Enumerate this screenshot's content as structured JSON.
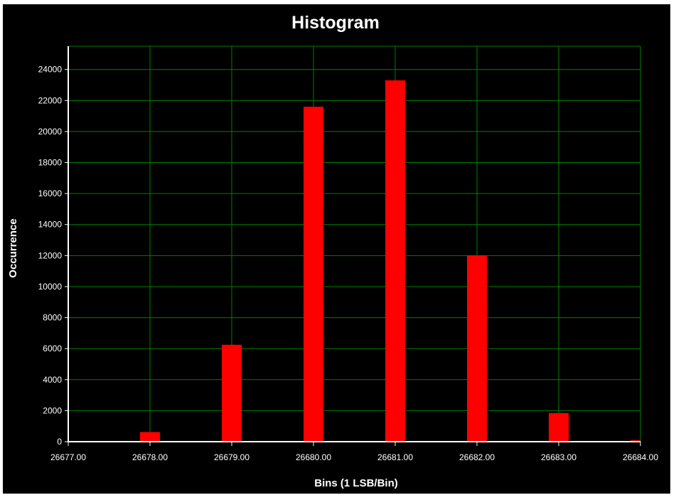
{
  "chart_data": {
    "type": "bar",
    "title": "Histogram",
    "xlabel": "Bins (1 LSB/Bin)",
    "ylabel": "Occurrence",
    "x": [
      26677,
      26678,
      26679,
      26680,
      26681,
      26682,
      26683,
      26684
    ],
    "values": [
      20,
      620,
      6250,
      21600,
      23300,
      12000,
      1850,
      100
    ],
    "x_ticks": [
      "26677.00",
      "26678.00",
      "26679.00",
      "26680.00",
      "26681.00",
      "26682.00",
      "26683.00",
      "26684.00"
    ],
    "y_ticks": [
      "0",
      "2000",
      "4000",
      "6000",
      "8000",
      "10000",
      "12000",
      "14000",
      "16000",
      "18000",
      "20000",
      "22000",
      "24000"
    ],
    "xlim": [
      26677,
      26684
    ],
    "ylim": [
      0,
      25500
    ],
    "grid": true,
    "colors": {
      "background": "#000000",
      "bar": "#ff0000",
      "grid": "#008000",
      "axis": "#ffffff",
      "text": "#ffffff"
    }
  }
}
